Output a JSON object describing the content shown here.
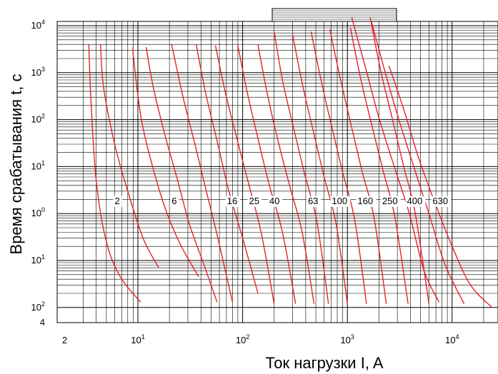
{
  "chart_data": {
    "type": "line",
    "title": "",
    "xlabel": "Ток нагрузки  I, A",
    "ylabel": "Время срабатывания  t, c",
    "x_scale": "log",
    "y_scale": "log",
    "xlim": [
      2,
      30000
    ],
    "ylim": [
      0.01,
      10000
    ],
    "grid": true,
    "x_ticks": [
      {
        "base": "2",
        "exp": ""
      },
      {
        "base": "10",
        "exp": "1"
      },
      {
        "base": "10",
        "exp": "2"
      },
      {
        "base": "10",
        "exp": "3"
      },
      {
        "base": "10",
        "exp": "4"
      }
    ],
    "y_ticks": [
      {
        "base": "10",
        "exp": "4"
      },
      {
        "base": "10",
        "exp": "3"
      },
      {
        "base": "10",
        "exp": "2"
      },
      {
        "base": "10",
        "exp": "1"
      },
      {
        "base": "10",
        "exp": "0"
      },
      {
        "base": "10",
        "exp": "1"
      },
      {
        "base": "10",
        "exp": "2"
      },
      {
        "base": "4",
        "exp": ""
      }
    ],
    "series": [
      {
        "name": "2",
        "points": [
          [
            3.4,
            4000
          ],
          [
            3.55,
            300
          ],
          [
            4.0,
            5
          ],
          [
            5.0,
            0.25
          ],
          [
            6.8,
            0.045
          ],
          [
            10.6,
            0.013
          ]
        ]
      },
      {
        "name": "",
        "points": [
          [
            4.4,
            4000
          ],
          [
            4.7,
            500
          ],
          [
            6.0,
            30
          ],
          [
            8.0,
            3
          ],
          [
            11.2,
            0.3
          ],
          [
            15.8,
            0.07
          ]
        ]
      },
      {
        "name": "",
        "points": [
          [
            9.0,
            3500
          ],
          [
            9.1,
            2000
          ],
          [
            10.8,
            100
          ],
          [
            14.2,
            8
          ],
          [
            19.0,
            1
          ],
          [
            26.0,
            0.2
          ],
          [
            38.0,
            0.045
          ]
        ]
      },
      {
        "name": "6",
        "points": [
          [
            12.0,
            3500
          ],
          [
            14.0,
            500
          ],
          [
            18.0,
            50
          ],
          [
            24.0,
            5
          ],
          [
            31.0,
            0.6
          ],
          [
            42.0,
            0.09
          ],
          [
            57.0,
            0.013
          ]
        ]
      },
      {
        "name": "",
        "points": [
          [
            21.0,
            4000
          ],
          [
            27.0,
            300
          ],
          [
            35.0,
            30
          ],
          [
            45.0,
            3
          ],
          [
            58.0,
            0.3
          ],
          [
            80.0,
            0.013
          ]
        ]
      },
      {
        "name": "16",
        "points": [
          [
            36.0,
            4000
          ],
          [
            44.0,
            400
          ],
          [
            58.0,
            30
          ],
          [
            74.0,
            3
          ],
          [
            100.0,
            0.3
          ],
          [
            140.0,
            0.02
          ]
        ]
      },
      {
        "name": "25",
        "points": [
          [
            55.0,
            3800
          ],
          [
            68.0,
            400
          ],
          [
            88.0,
            40
          ],
          [
            115.0,
            4
          ],
          [
            150.0,
            0.4
          ],
          [
            200.0,
            0.012
          ]
        ]
      },
      {
        "name": "40",
        "points": [
          [
            90.0,
            3800
          ],
          [
            110.0,
            400
          ],
          [
            140.0,
            40
          ],
          [
            180.0,
            4
          ],
          [
            240.0,
            0.4
          ],
          [
            320.0,
            0.012
          ]
        ]
      },
      {
        "name": "",
        "points": [
          [
            140.0,
            4000
          ],
          [
            170.0,
            400
          ],
          [
            215.0,
            40
          ],
          [
            280.0,
            4
          ],
          [
            370.0,
            0.4
          ],
          [
            480.0,
            0.012
          ]
        ]
      },
      {
        "name": "63",
        "points": [
          [
            200.0,
            7500
          ],
          [
            240.0,
            700
          ],
          [
            305.0,
            70
          ],
          [
            390.0,
            7
          ],
          [
            510.0,
            0.7
          ],
          [
            660.0,
            0.012
          ]
        ]
      },
      {
        "name": "100",
        "points": [
          [
            300.0,
            6500
          ],
          [
            370.0,
            600
          ],
          [
            470.0,
            60
          ],
          [
            600.0,
            6
          ],
          [
            780.0,
            0.6
          ],
          [
            1000.0,
            0.012
          ]
        ]
      },
      {
        "name": "160",
        "points": [
          [
            450.0,
            7500
          ],
          [
            560.0,
            700
          ],
          [
            710.0,
            70
          ],
          [
            910.0,
            7
          ],
          [
            1180.0,
            0.7
          ],
          [
            1520.0,
            0.012
          ]
        ]
      },
      {
        "name": "250",
        "points": [
          [
            680.0,
            8500
          ],
          [
            850.0,
            800
          ],
          [
            1080.0,
            80
          ],
          [
            1380.0,
            8
          ],
          [
            1800.0,
            0.8
          ],
          [
            2350.0,
            0.012
          ]
        ]
      },
      {
        "name": "400",
        "points": [
          [
            1070.0,
            9000
          ],
          [
            1330.0,
            800
          ],
          [
            1700.0,
            80
          ],
          [
            2200.0,
            8
          ],
          [
            2850.0,
            0.8
          ],
          [
            3800.0,
            0.012
          ]
        ]
      },
      {
        "name": "630",
        "points": [
          [
            1650.0,
            15000
          ],
          [
            2100.0,
            1000
          ],
          [
            2700.0,
            100
          ],
          [
            3450.0,
            10
          ],
          [
            4450.0,
            1
          ],
          [
            6000.0,
            0.012
          ]
        ]
      },
      {
        "name": "",
        "points": [
          [
            1100.0,
            15000
          ],
          [
            1500.0,
            1200
          ],
          [
            2000.0,
            110
          ],
          [
            2800.0,
            10
          ],
          [
            3900.0,
            1
          ],
          [
            5400.0,
            0.06
          ],
          [
            7500.0,
            0.013
          ]
        ]
      },
      {
        "name": "",
        "points": [
          [
            1700.0,
            12000
          ],
          [
            2300.0,
            1000
          ],
          [
            3100.0,
            100
          ],
          [
            4300.0,
            10
          ],
          [
            6000.0,
            1
          ],
          [
            8600.0,
            0.08
          ],
          [
            13000.0,
            0.012
          ]
        ]
      },
      {
        "name": "",
        "points": [
          [
            2500.0,
            1400
          ],
          [
            3500.0,
            150
          ],
          [
            4800.0,
            15
          ],
          [
            7000.0,
            1.5
          ],
          [
            10000.0,
            0.2
          ],
          [
            15000.0,
            0.03
          ],
          [
            24000.0,
            0.01
          ]
        ]
      }
    ],
    "curve_labels": [
      {
        "text": "2",
        "x": 6.0,
        "y": 1.6
      },
      {
        "text": "6",
        "x": 21.0,
        "y": 1.6
      },
      {
        "text": "16",
        "x": 71.0,
        "y": 1.6
      },
      {
        "text": "25",
        "x": 115.0,
        "y": 1.6
      },
      {
        "text": "40",
        "x": 180.0,
        "y": 1.6
      },
      {
        "text": "63",
        "x": 420.0,
        "y": 1.6
      },
      {
        "text": "100",
        "x": 710.0,
        "y": 1.6
      },
      {
        "text": "160",
        "x": 1250.0,
        "y": 1.6
      },
      {
        "text": "250",
        "x": 2150.0,
        "y": 1.6
      },
      {
        "text": "400",
        "x": 3700.0,
        "y": 1.6
      },
      {
        "text": "630",
        "x": 6500.0,
        "y": 1.6
      }
    ],
    "line_color": "#e8212a",
    "grid_color": "#000000"
  }
}
